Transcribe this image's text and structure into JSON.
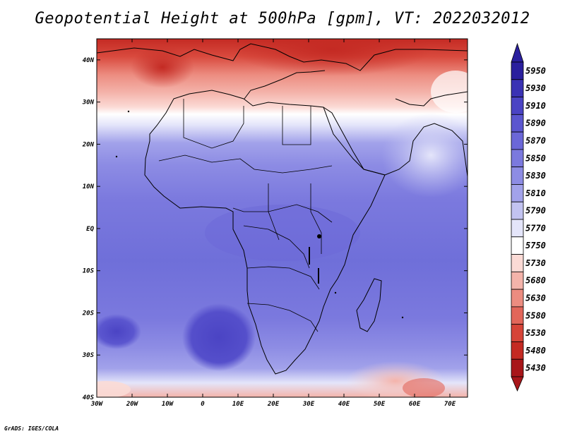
{
  "title": "Geopotential Height at 500hPa [gpm], VT: 2022032012",
  "credit": "GrADS: IGES/COLA",
  "map": {
    "region": "Africa",
    "variable": "Geopotential Height",
    "level": "500hPa",
    "units": "gpm",
    "valid_time": "2022032012",
    "lon_range": [
      -30,
      75
    ],
    "lat_range": [
      -40,
      45
    ],
    "lon_ticks": [
      -30,
      -20,
      -10,
      0,
      10,
      20,
      30,
      40,
      50,
      60,
      70
    ],
    "lon_tick_labels": [
      "30W",
      "20W",
      "10W",
      "0",
      "10E",
      "20E",
      "30E",
      "40E",
      "50E",
      "60E",
      "70E"
    ],
    "lat_ticks": [
      40,
      30,
      20,
      10,
      0,
      -10,
      -20,
      -30,
      -40
    ],
    "lat_tick_labels": [
      "40N",
      "30N",
      "20N",
      "10N",
      "EQ",
      "10S",
      "20S",
      "30S",
      "40S"
    ]
  },
  "colorbar": {
    "levels": [
      5950,
      5930,
      5910,
      5890,
      5870,
      5850,
      5830,
      5810,
      5790,
      5770,
      5750,
      5730,
      5680,
      5630,
      5580,
      5530,
      5480,
      5430
    ],
    "colors": [
      "#2a1f9e",
      "#3a32b4",
      "#4b44c4",
      "#5b56cf",
      "#6b67d8",
      "#7b79de",
      "#8d8ce4",
      "#a2a2ea",
      "#c2c3f1",
      "#e4e5fa",
      "#ffffff",
      "#fbdad5",
      "#f4b3aa",
      "#ec8c80",
      "#e2665a",
      "#d64438",
      "#c42a23",
      "#a8161a"
    ],
    "bottom_color": "#a8161a",
    "top_color": "#2a1f9e"
  },
  "colors": {
    "ocean_base": "#6f6fd9",
    "deep_low": "#5450c8",
    "subtropical_white": "#ffffff",
    "north_red": "#e2665a",
    "coast": "#000000"
  }
}
